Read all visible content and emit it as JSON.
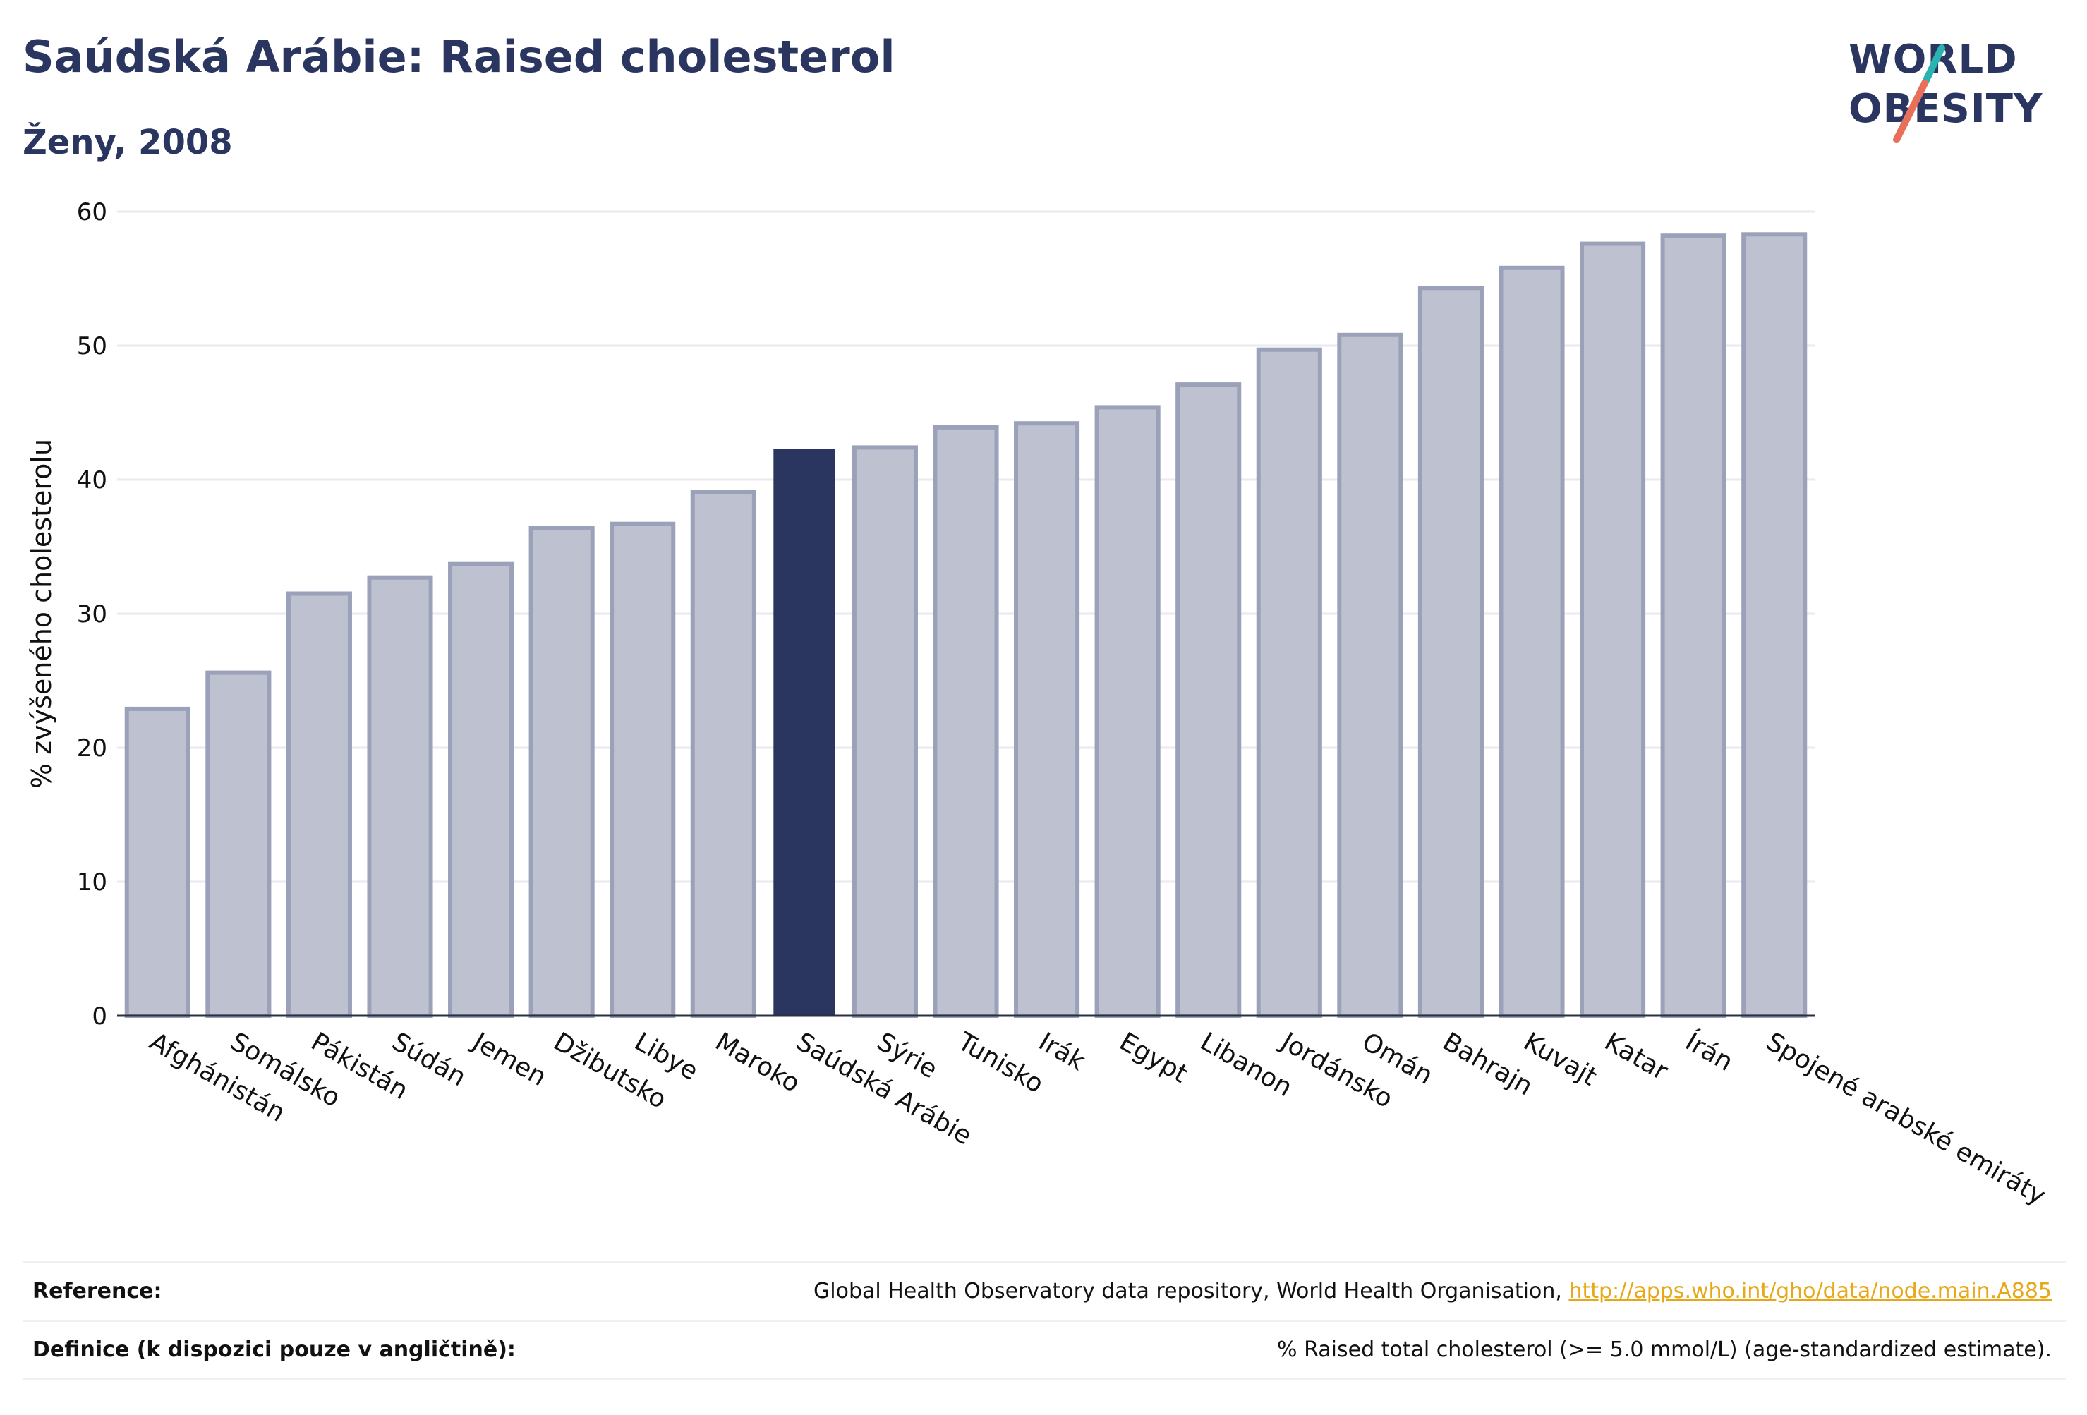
{
  "title": "Saúdská Arábie: Raised cholesterol",
  "subtitle": "Ženy, 2008",
  "logo": {
    "line1": "WORLD",
    "line2": "OBESITY"
  },
  "colors": {
    "bar": "#bec2d0",
    "bar_border": "#9ba1b9",
    "highlight": "#2a3560",
    "title": "#2a3560",
    "grid": "#e8eaf0",
    "link": "#e6a817",
    "logo_teal": "#2ab3b0",
    "logo_coral": "#e8705a"
  },
  "chart_data": {
    "type": "bar",
    "title": "Saúdská Arábie: Raised cholesterol",
    "subtitle": "Ženy, 2008",
    "xlabel": "",
    "ylabel": "% zvýšeného cholesterolu",
    "ylim": [
      0,
      60
    ],
    "yticks": [
      0,
      10,
      20,
      30,
      40,
      50,
      60
    ],
    "grid": true,
    "highlight": "Saúdská Arábie",
    "categories": [
      "Afghánistán",
      "Somálsko",
      "Pákistán",
      "Súdán",
      "Jemen",
      "Džibutsko",
      "Libye",
      "Maroko",
      "Saúdská Arábie",
      "Sýrie",
      "Tunisko",
      "Irák",
      "Egypt",
      "Libanon",
      "Jordánsko",
      "Omán",
      "Bahrajn",
      "Kuvajt",
      "Katar",
      "Írán",
      "Spojené arabské emiráty"
    ],
    "values": [
      22.9,
      25.6,
      31.5,
      32.7,
      33.7,
      36.4,
      36.7,
      39.1,
      42.3,
      42.4,
      43.9,
      44.2,
      45.4,
      47.1,
      49.7,
      50.8,
      54.3,
      55.8,
      57.6,
      58.2,
      58.3
    ]
  },
  "footer": {
    "reference_label": "Reference:",
    "reference_text": "Global Health Observatory data repository, World Health Organisation, ",
    "reference_link": "http://apps.who.int/gho/data/node.main.A885",
    "definition_label": "Definice (k dispozici pouze v angličtině):",
    "definition_text": "% Raised total cholesterol (>= 5.0 mmol/L) (age-standardized estimate)."
  }
}
